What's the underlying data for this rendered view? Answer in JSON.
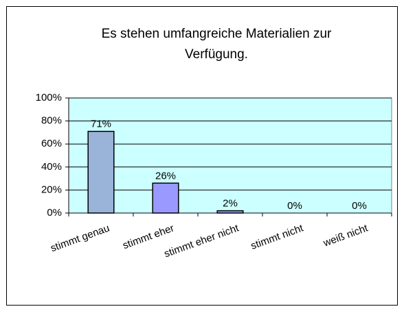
{
  "chart_data": {
    "type": "bar",
    "title_lines": [
      "Es stehen umfangreiche Materialien zur",
      "Verfügung."
    ],
    "categories": [
      "stimmt genau",
      "stimmt eher",
      "stimmt eher nicht",
      "stimmt nicht",
      "weiß nicht"
    ],
    "values": [
      71,
      26,
      2,
      0,
      0
    ],
    "value_labels": [
      "71%",
      "26%",
      "2%",
      "0%",
      "0%"
    ],
    "colors": [
      "#99b3d9",
      "#9999ff",
      "#9999ff",
      "#9999ff",
      "#9999ff"
    ],
    "plot_background": "#ccffff",
    "ylim": [
      0,
      100
    ],
    "yticks": [
      {
        "value": 0,
        "label": "0%"
      },
      {
        "value": 20,
        "label": "20%"
      },
      {
        "value": 40,
        "label": "40%"
      },
      {
        "value": 60,
        "label": "60%"
      },
      {
        "value": 80,
        "label": "80%"
      },
      {
        "value": 100,
        "label": "100%"
      }
    ],
    "grid": true
  }
}
